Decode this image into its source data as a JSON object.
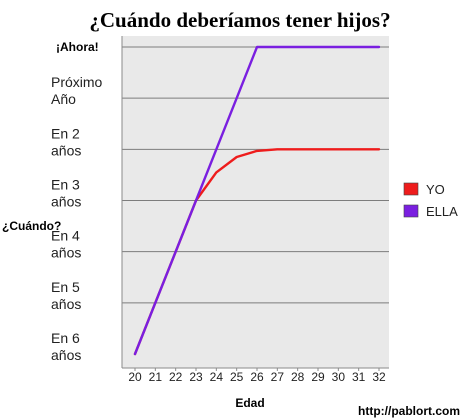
{
  "chart_data": {
    "type": "line",
    "title": "¿Cuándo deberíamos tener hijos?",
    "xlabel": "Edad",
    "ylabel": "¿Cuándo?",
    "x": [
      20,
      21,
      22,
      23,
      24,
      25,
      26,
      27,
      28,
      29,
      30,
      31,
      32
    ],
    "x_ticks": [
      "20",
      "21",
      "22",
      "23",
      "24",
      "25",
      "26",
      "27",
      "28",
      "29",
      "30",
      "31",
      "32"
    ],
    "y_ticks": [
      "¡Ahora!",
      "Próximo Año",
      "En 2 años",
      "En 3 años",
      "En 4 años",
      "En 5 años",
      "En 6 años"
    ],
    "y_ticks_bold": [
      true,
      false,
      false,
      false,
      false,
      false,
      false
    ],
    "ylim": [
      0,
      6
    ],
    "series": [
      {
        "name": "YO",
        "color": "#ee1c1c",
        "x": [
          20,
          21,
          22,
          23,
          24,
          25,
          26,
          27,
          28,
          29,
          30,
          31,
          32
        ],
        "y": [
          0,
          1,
          2,
          3,
          3.55,
          3.85,
          3.97,
          4,
          4,
          4,
          4,
          4,
          4
        ]
      },
      {
        "name": "ELLA",
        "color": "#7a1fe0",
        "x": [
          20,
          23,
          26,
          32
        ],
        "y": [
          0,
          3,
          6,
          6
        ]
      }
    ],
    "legend_position": "right",
    "grid": "horizontal"
  },
  "footer": "http://pablort.com"
}
